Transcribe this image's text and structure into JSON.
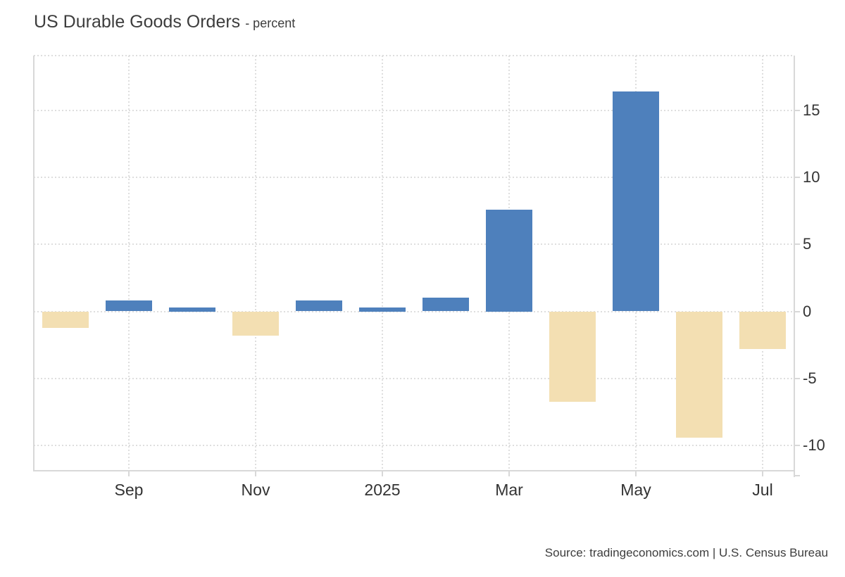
{
  "header": {
    "title": "US Durable Goods Orders",
    "subtitle": "- percent"
  },
  "footer": {
    "source": "Source: tradingeconomics.com | U.S. Census Bureau"
  },
  "colors": {
    "positive_bar": "#4E80BC",
    "negative_bar": "#F3DFB2",
    "grid": "#DEDEDE",
    "axis": "#D8D8D8",
    "text": "#333333"
  },
  "chart_data": {
    "type": "bar",
    "title": "US Durable Goods Orders",
    "unit_label": "percent",
    "values": [
      -1.2,
      0.8,
      0.3,
      -1.8,
      0.8,
      0.3,
      1.0,
      7.6,
      -6.7,
      16.4,
      -9.4,
      -2.8
    ],
    "x_tick_labels": [
      "Sep",
      "Nov",
      "2025",
      "Mar",
      "May",
      "Jul"
    ],
    "x_tick_bar_indices": [
      1,
      3,
      5,
      7,
      9,
      11
    ],
    "y_ticks": [
      15,
      10,
      5,
      0,
      -5,
      -10
    ],
    "ylim": [
      -11.9,
      19.1
    ],
    "grid": "dotted",
    "legend": "none"
  }
}
